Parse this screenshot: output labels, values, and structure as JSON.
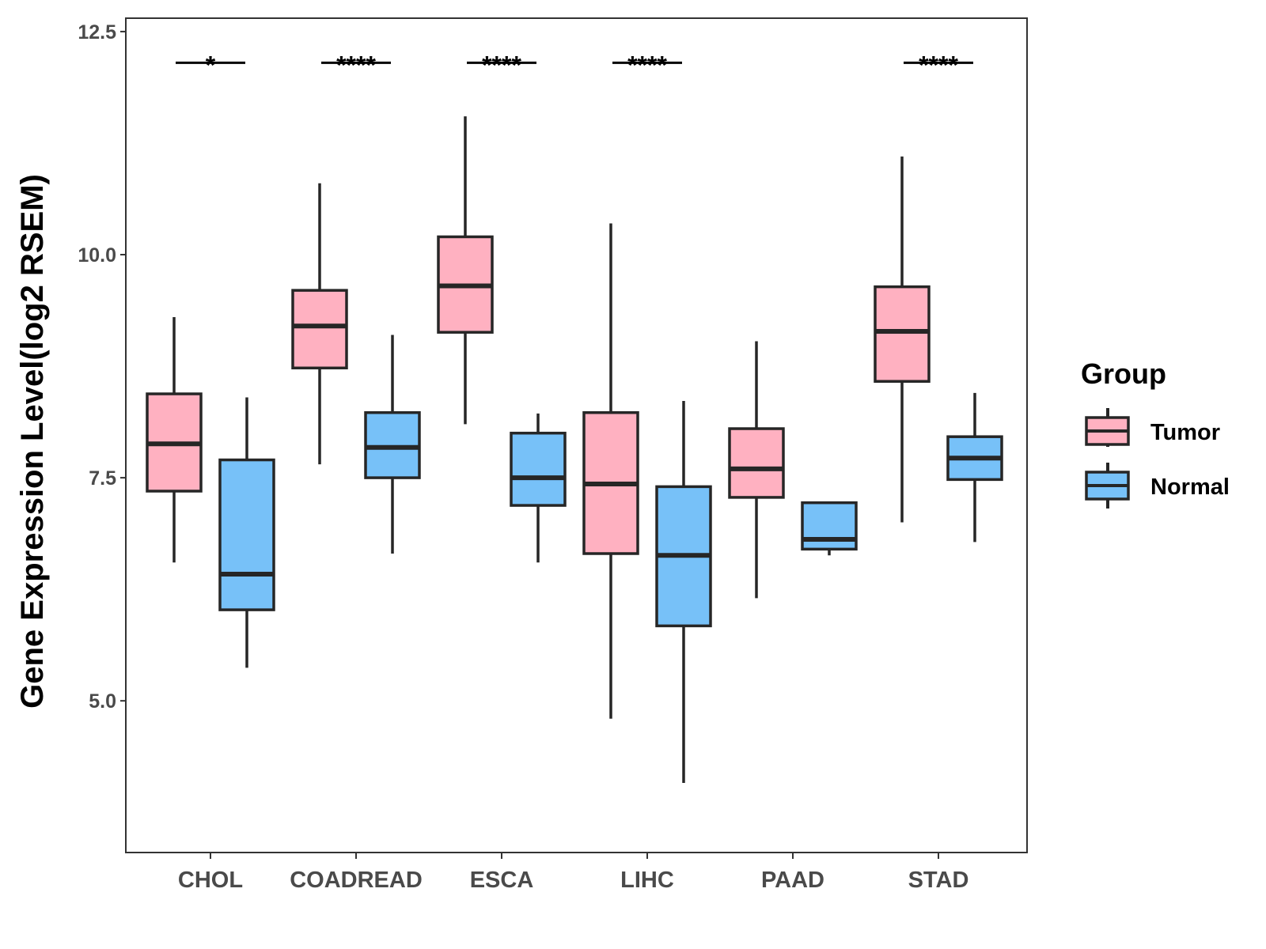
{
  "chart_data": {
    "type": "boxplot",
    "title": "",
    "xlabel": "",
    "ylabel": "Gene Expression Level(log2 RSEM)",
    "ylim": [
      3.3,
      12.65
    ],
    "yticks": [
      {
        "value": 5.0,
        "label": "5.0"
      },
      {
        "value": 7.5,
        "label": "7.5"
      },
      {
        "value": 10.0,
        "label": "10.0"
      },
      {
        "value": 12.5,
        "label": "12.5"
      }
    ],
    "categories": [
      "CHOL",
      "COADREAD",
      "ESCA",
      "LIHC",
      "PAAD",
      "STAD"
    ],
    "legend": {
      "title": "Group",
      "position": "right",
      "entries": [
        {
          "name": "Tumor",
          "color": "#FFB1C1"
        },
        {
          "name": "Normal",
          "color": "#77C1F8"
        }
      ]
    },
    "series": [
      {
        "name": "Tumor",
        "color": "#FFB1C1",
        "boxes": [
          {
            "category": "CHOL",
            "whisker_low": 6.55,
            "q1": 7.35,
            "median": 7.88,
            "q3": 8.44,
            "whisker_high": 9.3
          },
          {
            "category": "COADREAD",
            "whisker_low": 7.65,
            "q1": 8.73,
            "median": 9.2,
            "q3": 9.6,
            "whisker_high": 10.8
          },
          {
            "category": "ESCA",
            "whisker_low": 8.1,
            "q1": 9.13,
            "median": 9.65,
            "q3": 10.2,
            "whisker_high": 11.55
          },
          {
            "category": "LIHC",
            "whisker_low": 4.8,
            "q1": 6.65,
            "median": 7.43,
            "q3": 8.23,
            "whisker_high": 10.35
          },
          {
            "category": "PAAD",
            "whisker_low": 6.15,
            "q1": 7.28,
            "median": 7.6,
            "q3": 8.05,
            "whisker_high": 9.03
          },
          {
            "category": "STAD",
            "whisker_low": 7.0,
            "q1": 8.58,
            "median": 9.14,
            "q3": 9.64,
            "whisker_high": 11.1
          }
        ]
      },
      {
        "name": "Normal",
        "color": "#77C1F8",
        "boxes": [
          {
            "category": "CHOL",
            "whisker_low": 5.37,
            "q1": 6.02,
            "median": 6.42,
            "q3": 7.7,
            "whisker_high": 8.4
          },
          {
            "category": "COADREAD",
            "whisker_low": 6.65,
            "q1": 7.5,
            "median": 7.84,
            "q3": 8.23,
            "whisker_high": 9.1
          },
          {
            "category": "ESCA",
            "whisker_low": 6.55,
            "q1": 7.19,
            "median": 7.5,
            "q3": 8.0,
            "whisker_high": 8.22
          },
          {
            "category": "LIHC",
            "whisker_low": 4.08,
            "q1": 5.84,
            "median": 6.63,
            "q3": 7.4,
            "whisker_high": 8.36
          },
          {
            "category": "PAAD",
            "whisker_low": 6.63,
            "q1": 6.7,
            "median": 6.81,
            "q3": 7.22,
            "whisker_high": 7.22
          },
          {
            "category": "STAD",
            "whisker_low": 6.78,
            "q1": 7.48,
            "median": 7.72,
            "q3": 7.96,
            "whisker_high": 8.45
          }
        ]
      }
    ],
    "significance": [
      {
        "category": "CHOL",
        "label": "*"
      },
      {
        "category": "COADREAD",
        "label": "****"
      },
      {
        "category": "ESCA",
        "label": "****"
      },
      {
        "category": "LIHC",
        "label": "****"
      },
      {
        "category": "STAD",
        "label": "****"
      }
    ],
    "significance_y": 12.15,
    "grid": false
  }
}
